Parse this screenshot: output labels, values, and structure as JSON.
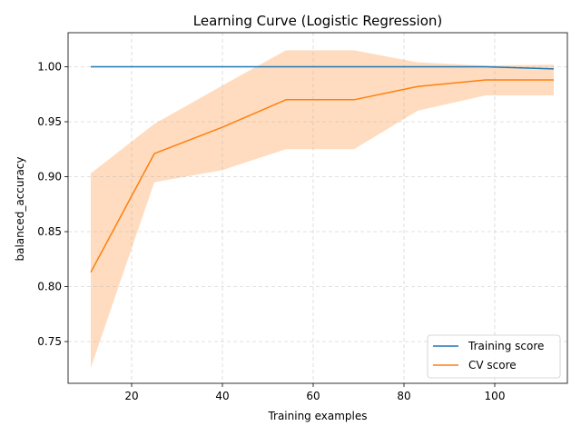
{
  "chart_data": {
    "type": "line",
    "title": "Learning Curve (Logistic Regression)",
    "xlabel": "Training examples",
    "ylabel": "balanced_accuracy",
    "xlim": [
      6,
      116
    ],
    "ylim": [
      0.712,
      1.031
    ],
    "xticks": [
      20,
      40,
      60,
      80,
      100
    ],
    "yticks": [
      0.75,
      0.8,
      0.85,
      0.9,
      0.95,
      1.0
    ],
    "xtick_labels": [
      "20",
      "40",
      "60",
      "80",
      "100"
    ],
    "ytick_labels": [
      "0.75",
      "0.80",
      "0.85",
      "0.90",
      "0.95",
      "1.00"
    ],
    "grid": true,
    "legend_position": "lower-right",
    "x": [
      11,
      25,
      40,
      54,
      69,
      83,
      98,
      113
    ],
    "series": [
      {
        "name": "Training score",
        "color": "#1f77b4",
        "values": [
          1.0,
          1.0,
          1.0,
          1.0,
          1.0,
          1.0,
          1.0,
          0.998
        ],
        "band_lower": [
          1.0,
          1.0,
          1.0,
          1.0,
          1.0,
          1.0,
          1.0,
          0.995
        ],
        "band_upper": [
          1.0,
          1.0,
          1.0,
          1.0,
          1.0,
          1.0,
          1.0,
          1.001
        ]
      },
      {
        "name": "CV score",
        "color": "#ff7f0e",
        "values": [
          0.813,
          0.921,
          0.945,
          0.97,
          0.97,
          0.982,
          0.988,
          0.988
        ],
        "band_lower": [
          0.726,
          0.895,
          0.906,
          0.925,
          0.925,
          0.96,
          0.974,
          0.974
        ],
        "band_upper": [
          0.903,
          0.948,
          0.983,
          1.015,
          1.015,
          1.004,
          1.001,
          1.002
        ],
        "band_color": "#ffdcbf"
      }
    ]
  }
}
